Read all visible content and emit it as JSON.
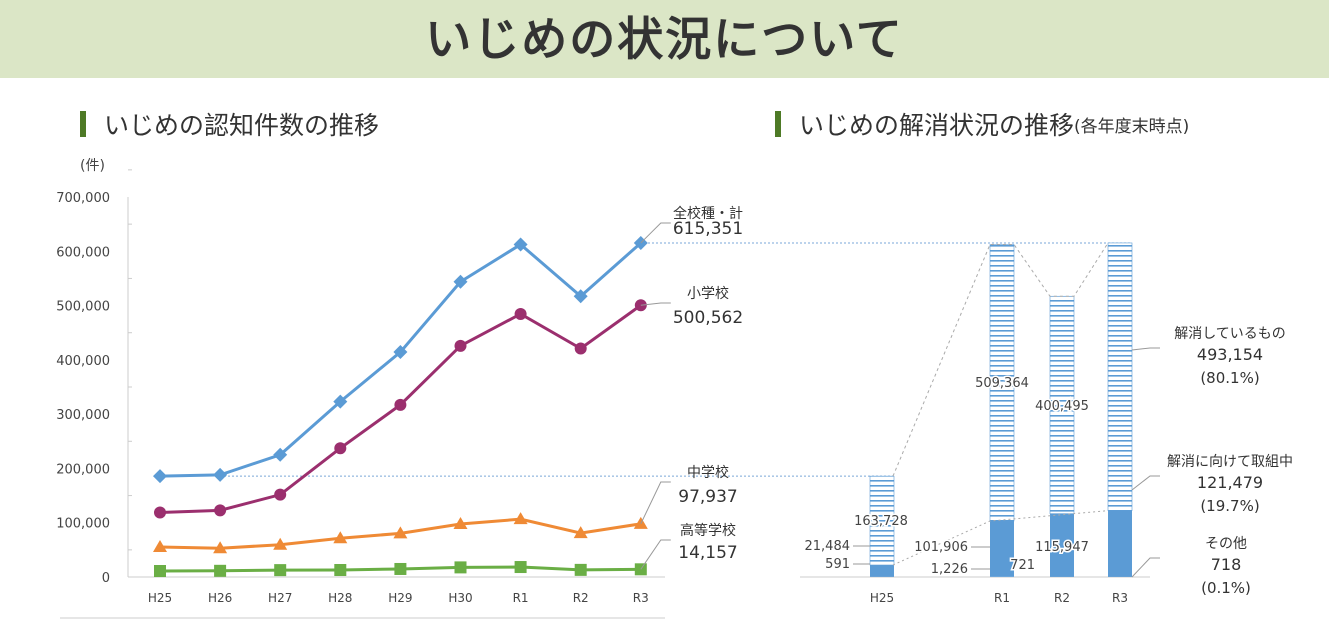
{
  "title": "いじめの状況について",
  "left_heading": "いじめの認知件数の推移",
  "right_heading": "いじめの解消状況の推移",
  "right_heading_note": "(各年度末時点)",
  "colors": {
    "total": "#5b9bd5",
    "elementary": "#9b2f6e",
    "junior": "#ef8a35",
    "high": "#6aae45",
    "bar_solid": "#5b9bd5",
    "banner": "#dbe6c6"
  },
  "chart_data": [
    {
      "type": "line",
      "title": "いじめの認知件数の推移",
      "ylabel": "(件)",
      "ylim": [
        0,
        700000
      ],
      "yticks": [
        "0",
        "100,000",
        "200,000",
        "300,000",
        "400,000",
        "500,000",
        "600,000",
        "700,000"
      ],
      "categories": [
        "H25",
        "H26",
        "H27",
        "H28",
        "H29",
        "H30",
        "R1",
        "R2",
        "R3"
      ],
      "series": [
        {
          "name": "全校種・計",
          "label_value": "615,351",
          "marker": "diamond",
          "values": [
            185803,
            188072,
            225132,
            323143,
            414378,
            543933,
            612496,
            517163,
            615351
          ]
        },
        {
          "name": "小学校",
          "label_value": "500,562",
          "marker": "circle",
          "values": [
            118748,
            122734,
            151692,
            237256,
            317121,
            425844,
            484545,
            420897,
            500562
          ]
        },
        {
          "name": "中学校",
          "label_value": "97,937",
          "marker": "triangle",
          "values": [
            55248,
            52971,
            59502,
            71309,
            80424,
            97704,
            106524,
            80877,
            97937
          ]
        },
        {
          "name": "高等学校",
          "label_value": "14,157",
          "marker": "square",
          "values": [
            11039,
            11404,
            12664,
            12874,
            14789,
            17709,
            18352,
            13126,
            14157
          ]
        }
      ]
    },
    {
      "type": "bar",
      "stacked": true,
      "title": "いじめの解消状況の推移",
      "categories": [
        "H25",
        "R1",
        "R2",
        "R3"
      ],
      "series": [
        {
          "name": "その他",
          "values": [
            591,
            1226,
            721,
            718
          ],
          "labels": [
            "591",
            "1,226",
            "721",
            ""
          ]
        },
        {
          "name": "解消に向けて取組中",
          "values": [
            21484,
            101906,
            115947,
            121479
          ],
          "labels": [
            "21,484",
            "101,906",
            "115,947",
            ""
          ]
        },
        {
          "name": "解消しているもの",
          "values": [
            163728,
            509364,
            400495,
            493154
          ],
          "labels": [
            "163,728",
            "509,364",
            "400,495",
            ""
          ]
        }
      ],
      "legend": [
        {
          "name": "解消しているもの",
          "value": "493,154",
          "pct": "(80.1%)"
        },
        {
          "name": "解消に向けて取組中",
          "value": "121,479",
          "pct": "(19.7%)"
        },
        {
          "name": "その他",
          "value": "718",
          "pct": "(0.1%)"
        }
      ]
    }
  ]
}
